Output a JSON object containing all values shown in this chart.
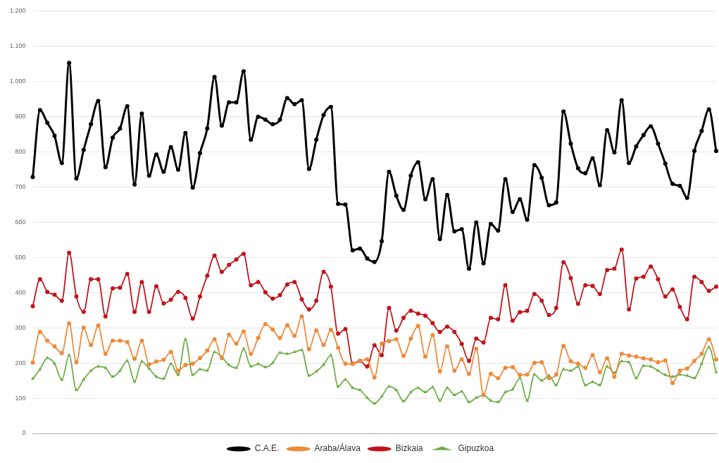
{
  "chart_data": {
    "type": "line",
    "categories": [
      null,
      null,
      null,
      null,
      null,
      null,
      null,
      null,
      null,
      null,
      null,
      null,
      null,
      null,
      null,
      null,
      null,
      null,
      null,
      null,
      null,
      null,
      null,
      null,
      null,
      null,
      null,
      null,
      null,
      null,
      null,
      null,
      null,
      null,
      null,
      null,
      null,
      null,
      null,
      null,
      null,
      null,
      null,
      null,
      null,
      null,
      null,
      null,
      null,
      null,
      null,
      null,
      null,
      null,
      null,
      null,
      null,
      null,
      null,
      null,
      null,
      null,
      null,
      null,
      null,
      null,
      null,
      null,
      null,
      null,
      null,
      null,
      null,
      null,
      null,
      null,
      null,
      null,
      null,
      null,
      null,
      null,
      null,
      null,
      null,
      null,
      null,
      null,
      null,
      null,
      null,
      null,
      null,
      null,
      null
    ],
    "series": [
      {
        "name": "C.A.E.",
        "color": "#000000",
        "marker": "circle",
        "values": [
          728,
          918,
          882,
          845,
          768,
          1052,
          724,
          805,
          878,
          944,
          756,
          840,
          866,
          929,
          707,
          908,
          732,
          792,
          743,
          813,
          749,
          853,
          698,
          796,
          866,
          1012,
          874,
          940,
          940,
          1028,
          834,
          899,
          891,
          878,
          891,
          952,
          935,
          946,
          751,
          834,
          904,
          927,
          652,
          650,
          520,
          525,
          497,
          487,
          546,
          743,
          675,
          635,
          732,
          770,
          665,
          722,
          552,
          677,
          574,
          580,
          468,
          599,
          483,
          595,
          576,
          722,
          629,
          665,
          607,
          762,
          726,
          648,
          656,
          914,
          823,
          753,
          739,
          781,
          705,
          861,
          798,
          946,
          768,
          815,
          847,
          872,
          823,
          766,
          709,
          703,
          669,
          802,
          859,
          920,
          802
        ]
      },
      {
        "name": "Araba/Álava",
        "color": "#ed8b3a",
        "marker": "circle",
        "values": [
          201,
          288,
          263,
          247,
          228,
          312,
          202,
          300,
          251,
          306,
          226,
          263,
          263,
          259,
          212,
          263,
          196,
          204,
          209,
          231,
          178,
          194,
          198,
          214,
          235,
          267,
          214,
          280,
          255,
          289,
          226,
          271,
          310,
          295,
          271,
          307,
          277,
          332,
          239,
          292,
          251,
          294,
          243,
          198,
          197,
          206,
          210,
          159,
          255,
          262,
          267,
          220,
          269,
          305,
          218,
          279,
          176,
          247,
          178,
          210,
          169,
          240,
          109,
          169,
          157,
          186,
          188,
          166,
          167,
          200,
          202,
          157,
          167,
          248,
          205,
          198,
          186,
          222,
          174,
          213,
          161,
          226,
          221,
          218,
          213,
          210,
          202,
          207,
          143,
          178,
          184,
          206,
          226,
          267,
          210
        ]
      },
      {
        "name": "Bizkaia",
        "color": "#c0141c",
        "marker": "circle",
        "values": [
          361,
          438,
          402,
          394,
          377,
          513,
          389,
          345,
          438,
          438,
          332,
          412,
          414,
          453,
          345,
          430,
          345,
          418,
          369,
          380,
          402,
          385,
          326,
          389,
          448,
          505,
          459,
          479,
          494,
          510,
          421,
          430,
          401,
          383,
          393,
          423,
          430,
          381,
          352,
          377,
          459,
          417,
          283,
          296,
          198,
          206,
          190,
          250,
          222,
          356,
          292,
          328,
          348,
          340,
          334,
          313,
          288,
          303,
          288,
          254,
          206,
          269,
          258,
          328,
          324,
          421,
          320,
          344,
          348,
          396,
          377,
          336,
          356,
          486,
          441,
          368,
          421,
          419,
          396,
          464,
          468,
          522,
          352,
          440,
          445,
          474,
          438,
          389,
          409,
          359,
          324,
          445,
          430,
          405,
          417
        ]
      },
      {
        "name": "Gipuzkoa",
        "color": "#70ad47",
        "marker": "triangle",
        "values": [
          155,
          182,
          214,
          198,
          152,
          222,
          123,
          153,
          178,
          190,
          186,
          161,
          178,
          206,
          147,
          204,
          184,
          161,
          155,
          198,
          166,
          267,
          166,
          182,
          178,
          231,
          217,
          194,
          186,
          240,
          190,
          197,
          188,
          200,
          229,
          226,
          231,
          237,
          164,
          176,
          195,
          222,
          133,
          153,
          129,
          123,
          101,
          85,
          105,
          133,
          123,
          91,
          117,
          129,
          117,
          131,
          93,
          129,
          109,
          119,
          89,
          101,
          109,
          93,
          89,
          117,
          125,
          157,
          93,
          167,
          150,
          164,
          137,
          182,
          178,
          190,
          137,
          146,
          137,
          190,
          172,
          205,
          202,
          157,
          192,
          190,
          178,
          166,
          161,
          167,
          164,
          157,
          198,
          245,
          174
        ]
      }
    ],
    "ylim": [
      0,
      1200
    ],
    "yticks": [
      0,
      100,
      200,
      300,
      400,
      500,
      600,
      700,
      800,
      900,
      {
        "value": 1000,
        "label": "1.000"
      },
      {
        "value": 1100,
        "label": "1.100"
      },
      {
        "value": 1200,
        "label": "1.200"
      }
    ],
    "grid": "y",
    "legend": "bottom",
    "tick_labels": "y",
    "line_style": "solid"
  }
}
